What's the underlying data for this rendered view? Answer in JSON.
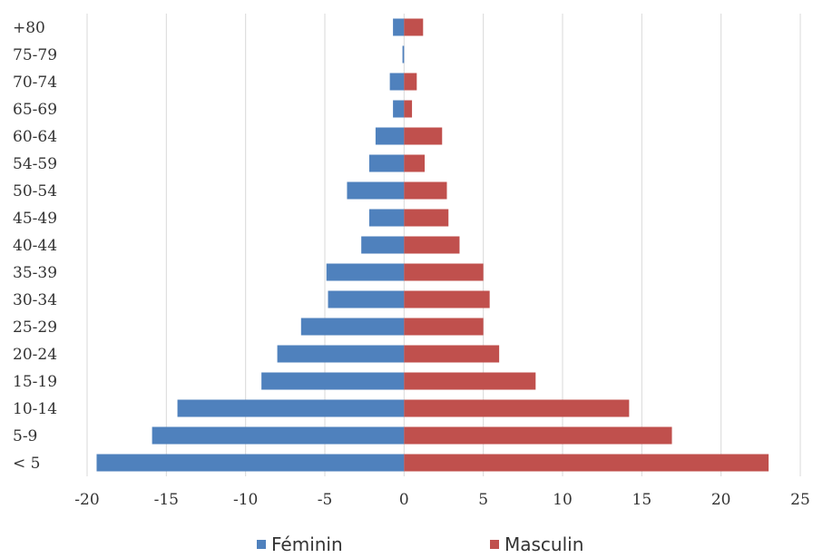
{
  "chart_data": {
    "type": "bar",
    "orientation": "horizontal",
    "categories": [
      "+80",
      "75-79",
      "70-74",
      "65-69",
      "60-64",
      "54-59",
      "50-54",
      "45-49",
      "40-44",
      "35-39",
      "30-34",
      "25-29",
      "20-24",
      "15-19",
      "10-14",
      "5-9",
      "< 5"
    ],
    "series": [
      {
        "name": "Féminin",
        "color": "#4f81bd",
        "values": [
          -0.7,
          -0.1,
          -0.9,
          -0.7,
          -1.8,
          -2.2,
          -3.6,
          -2.2,
          -2.7,
          -4.9,
          -4.8,
          -6.5,
          -8.0,
          -9.0,
          -14.3,
          -15.9,
          -19.4
        ]
      },
      {
        "name": "Masculin",
        "color": "#c0504d",
        "values": [
          1.2,
          0.0,
          0.8,
          0.5,
          2.4,
          1.3,
          2.7,
          2.8,
          3.5,
          5.0,
          5.4,
          5.0,
          6.0,
          8.3,
          14.2,
          16.9,
          23.0
        ]
      }
    ],
    "x_ticks": [
      "-20",
      "-15",
      "-10",
      "-5",
      "0",
      "5",
      "10",
      "15",
      "20",
      "25"
    ],
    "xlim": [
      -20,
      25
    ],
    "grid": "vertical",
    "legend": "bottom"
  }
}
